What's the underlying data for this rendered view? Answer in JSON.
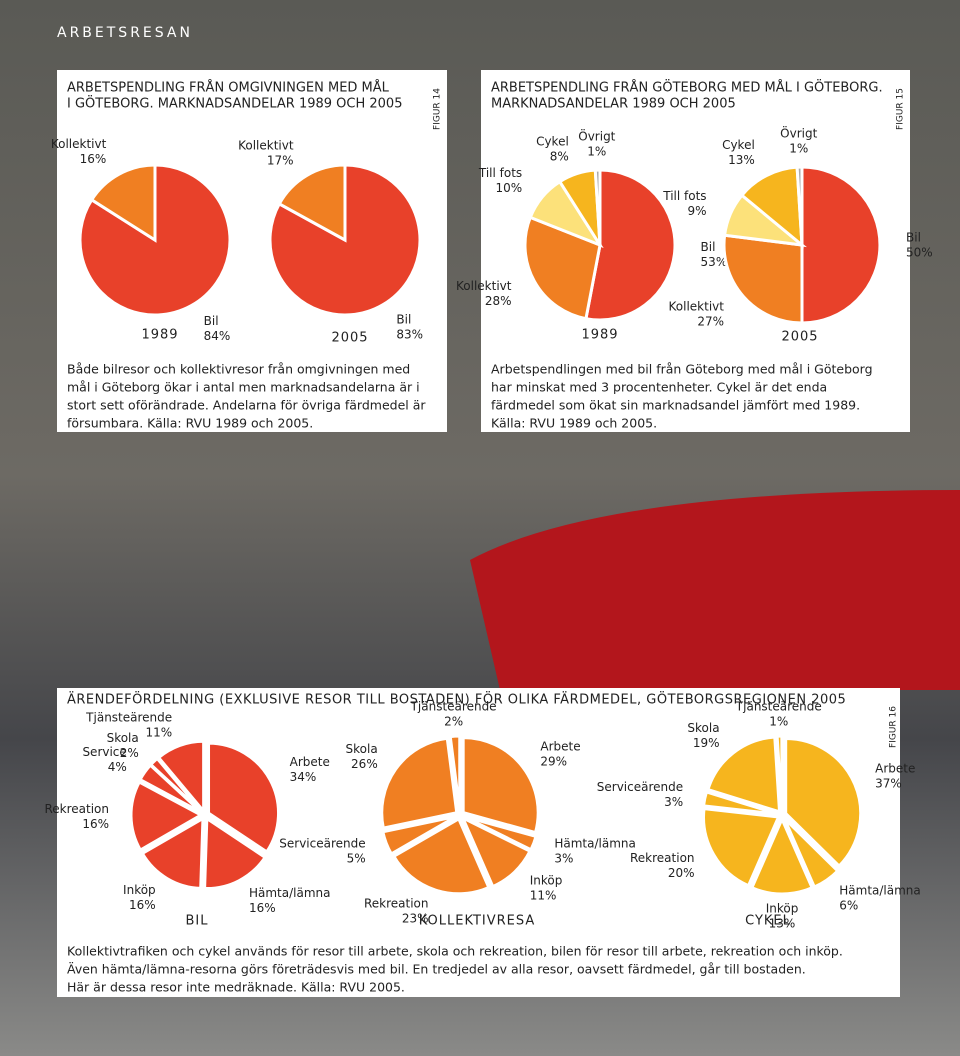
{
  "section": "ARBETSRESAN",
  "panels": [
    {
      "title": [
        "ARBETSPENDLING FRÅN OMGIVNINGEN MED MÅL",
        "I GÖTEBORG. MARKNADSANDELAR 1989 OCH 2005"
      ],
      "figure": "FIGUR 14",
      "caption": [
        "Både bilresor och kollektivresor från omgivningen med",
        "mål i Göteborg ökar i antal men marknadsandelarna är i",
        "stort sett oförändrade. Andelarna för övriga färdmedel är",
        "försumbara. Källa: RVU 1989 och 2005."
      ]
    },
    {
      "title": [
        "ARBETSPENDLING FRÅN GÖTEBORG MED MÅL I GÖTEBORG.",
        "MARKNADSANDELAR 1989 OCH 2005"
      ],
      "figure": "FIGUR 15",
      "caption": [
        "Arbetspendlingen med bil från Göteborg med mål i Göteborg",
        "har minskat med 3 procentenheter. Cykel är det enda",
        "färdmedel som ökat sin marknadsandel jämfört med 1989.",
        "Källa: RVU 1989 och 2005."
      ]
    },
    {
      "title": [
        "ÄRENDEFÖRDELNING (EXKLUSIVE RESOR TILL BOSTADEN) FÖR OLIKA FÄRDMEDEL, GÖTEBORGSREGIONEN 2005"
      ],
      "figure": "FIGUR 16",
      "caption": [
        "Kollektivtrafiken och cykel används för resor till arbete, skola och rekreation, bilen för resor till arbete, rekreation och inköp.",
        "Även hämta/lämna-resorna görs företrädesvis med bil. En tredjedel av alla resor, oavsett färdmedel, går till bostaden.",
        "Här är dessa resor inte medräknade. Källa: RVU 2005."
      ]
    }
  ],
  "chart_data": [
    {
      "type": "pie",
      "label": "1989",
      "categories": [
        "Bil",
        "Kollektivt"
      ],
      "values": [
        84,
        16
      ],
      "value_labels": [
        "84%",
        "16%"
      ],
      "colors": [
        "#e8412a",
        "#f07f22"
      ]
    },
    {
      "type": "pie",
      "label": "2005",
      "categories": [
        "Bil",
        "Kollektivt"
      ],
      "values": [
        83,
        17
      ],
      "value_labels": [
        "83%",
        "17%"
      ],
      "colors": [
        "#e8412a",
        "#f07f22"
      ]
    },
    {
      "type": "pie",
      "label": "1989",
      "categories": [
        "Bil",
        "Kollektivt",
        "Till fots",
        "Cykel",
        "Övrigt"
      ],
      "values": [
        53,
        28,
        10,
        8,
        1
      ],
      "value_labels": [
        "53%",
        "28%",
        "10%",
        "8%",
        "1%"
      ],
      "colors": [
        "#e8412a",
        "#f07f22",
        "#fce17a",
        "#f6b51e",
        "#aaaaaa"
      ]
    },
    {
      "type": "pie",
      "label": "2005",
      "categories": [
        "Bil",
        "Kollektivt",
        "Till fots",
        "Cykel",
        "Övrigt"
      ],
      "values": [
        50,
        27,
        9,
        13,
        1
      ],
      "value_labels": [
        "50%",
        "27%",
        "9%",
        "13%",
        "1%"
      ],
      "colors": [
        "#e8412a",
        "#f07f22",
        "#fce17a",
        "#f6b51e",
        "#aaaaaa"
      ]
    },
    {
      "type": "pie",
      "label": "BIL",
      "categories": [
        "Arbete",
        "Hämta/lämna",
        "Inköp",
        "Rekreation",
        "Service",
        "Skola",
        "Tjänsteärende"
      ],
      "values": [
        34,
        16,
        16,
        16,
        4,
        2,
        11
      ],
      "value_labels": [
        "34%",
        "16%",
        "16%",
        "16%",
        "4%",
        "2%",
        "11%"
      ],
      "color": "#e8412a"
    },
    {
      "type": "pie",
      "label": "KOLLEKTIVRESA",
      "categories": [
        "Arbete",
        "Hämta/lämna",
        "Inköp",
        "Rekreation",
        "Serviceärende",
        "Skola",
        "Tjänsteärende"
      ],
      "values": [
        29,
        3,
        11,
        23,
        5,
        26,
        2
      ],
      "value_labels": [
        "29%",
        "3%",
        "11%",
        "23%",
        "5%",
        "26%",
        "2%"
      ],
      "color": "#f07f22"
    },
    {
      "type": "pie",
      "label": "CYKEL",
      "categories": [
        "Arbete",
        "Hämta/lämna",
        "Inköp",
        "Rekreation",
        "Serviceärende",
        "Skola",
        "Tjänsteärende"
      ],
      "values": [
        37,
        6,
        13,
        20,
        3,
        19,
        1
      ],
      "value_labels": [
        "37%",
        "6%",
        "13%",
        "20%",
        "3%",
        "19%",
        "1%"
      ],
      "color": "#f6b51e"
    }
  ]
}
